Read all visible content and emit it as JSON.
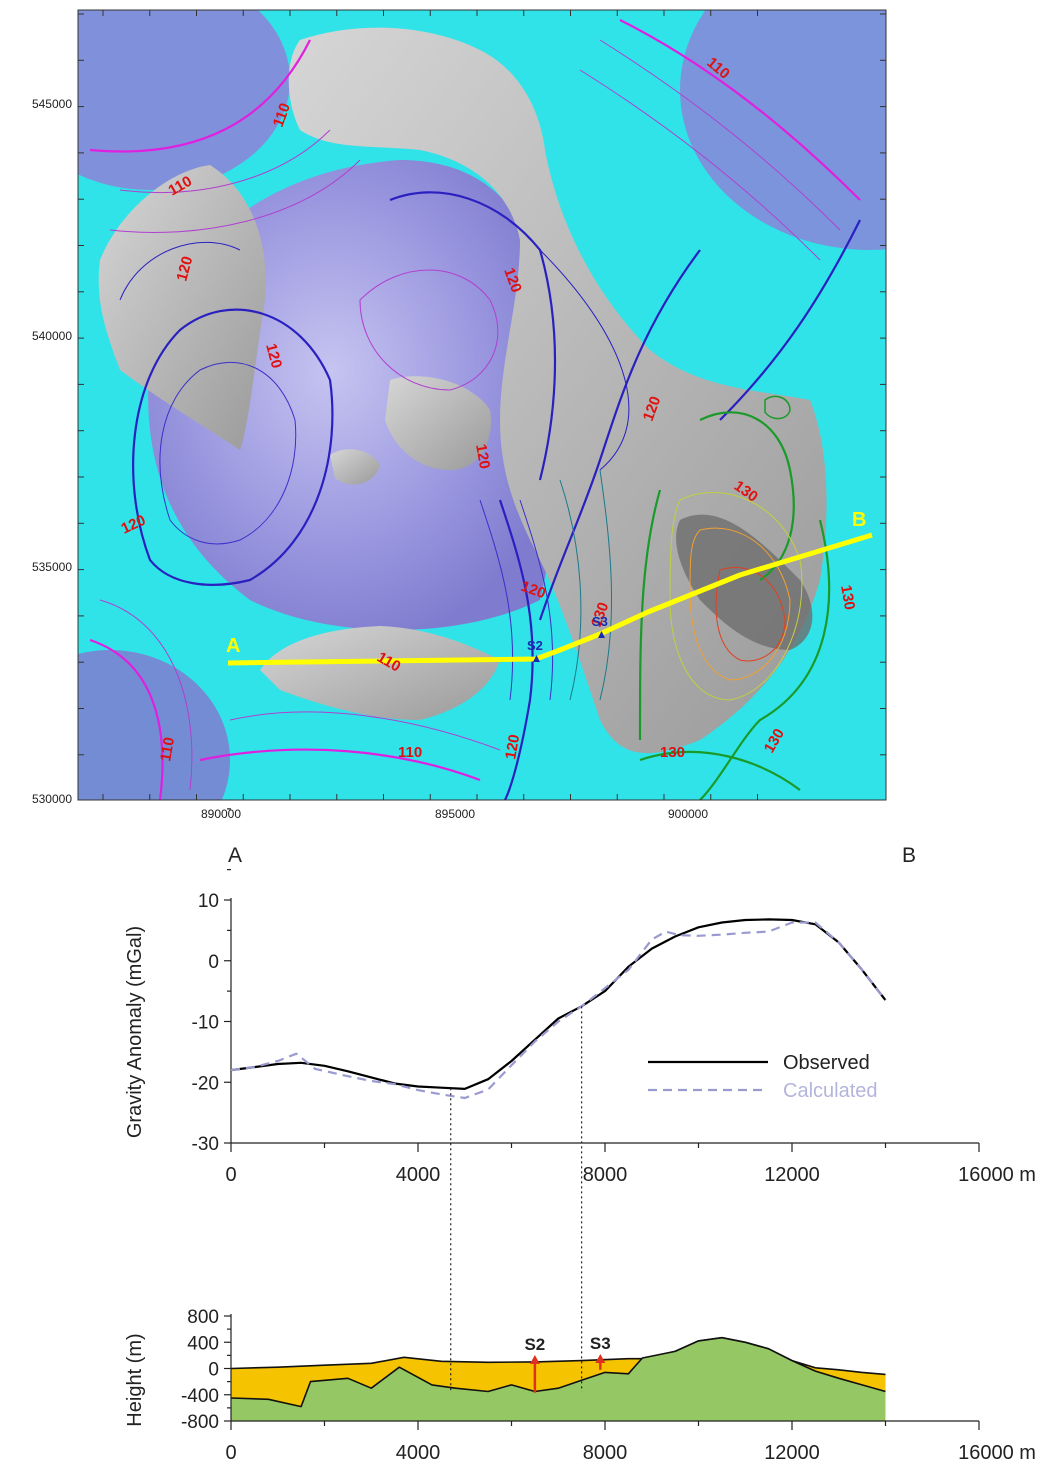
{
  "map": {
    "x_ticks": [
      "890000",
      "895000",
      "900000"
    ],
    "y_ticks": [
      "545000",
      "540000",
      "535000",
      "530000"
    ],
    "contour_labels": [
      "110",
      "110",
      "110",
      "110",
      "110",
      "110",
      "120",
      "120",
      "120",
      "120",
      "120",
      "120",
      "120",
      "130",
      "130",
      "130",
      "130",
      "130"
    ],
    "profile_points": [
      "A",
      "B"
    ],
    "stations": [
      "S2",
      "S3"
    ],
    "colors": {
      "ocean": "#2fe3e8",
      "deep_basin": "#8a86d8",
      "land": "#b9b9b9",
      "profile_line": "#ffff00",
      "label_red": "#e01010",
      "station_blue": "#1a2bb0"
    }
  },
  "profile_ends": {
    "left": "A",
    "right": "B"
  },
  "chart_data": [
    {
      "type": "line",
      "ylabel": "Gravity Anomaly (mGal)",
      "ylim": [
        -30,
        10
      ],
      "xlim": [
        0,
        16000
      ],
      "y_ticks": [
        "10",
        "0",
        "-10",
        "-20",
        "-30"
      ],
      "x_ticks": [
        "0",
        "4000",
        "8000",
        "12000",
        "16000 m"
      ],
      "legend_position": "right",
      "series": [
        {
          "name": "Observed",
          "color": "#000000",
          "dash": "solid",
          "x": [
            0,
            500,
            1000,
            1500,
            2000,
            2500,
            3000,
            3500,
            4000,
            4500,
            5000,
            5500,
            6000,
            6500,
            7000,
            7500,
            8000,
            8500,
            9000,
            9500,
            10000,
            10500,
            11000,
            11500,
            12000,
            12500,
            13000,
            13500,
            14000
          ],
          "y": [
            -18,
            -17.5,
            -17,
            -16.8,
            -17.3,
            -18.2,
            -19.2,
            -20.2,
            -20.7,
            -20.9,
            -21.1,
            -19.5,
            -16.5,
            -13,
            -9.5,
            -7.5,
            -5,
            -1,
            2,
            4,
            5.5,
            6.3,
            6.7,
            6.8,
            6.7,
            6,
            3,
            -1.5,
            -6.5
          ]
        },
        {
          "name": "Calculated",
          "color": "#9a9ad0",
          "dash": "dashed",
          "x": [
            0,
            500,
            1000,
            1400,
            1800,
            2500,
            3000,
            3500,
            4000,
            4500,
            5000,
            5500,
            6000,
            6500,
            7000,
            7500,
            8000,
            8500,
            9000,
            9300,
            9600,
            10000,
            10500,
            11000,
            11500,
            12000,
            12500,
            13000,
            13500,
            14000
          ],
          "y": [
            -18,
            -17.5,
            -16.5,
            -15.3,
            -17.8,
            -19,
            -19.8,
            -20.3,
            -21.3,
            -22,
            -22.6,
            -21.2,
            -17.2,
            -13.3,
            -10,
            -7.5,
            -4.5,
            -1.5,
            3.5,
            4.8,
            4.2,
            4.1,
            4.3,
            4.6,
            4.8,
            6.3,
            6.3,
            3,
            -1.5,
            -6.5
          ]
        }
      ]
    },
    {
      "type": "area",
      "ylabel": "Height (m)",
      "ylim": [
        -800,
        800
      ],
      "xlim": [
        0,
        16000
      ],
      "y_ticks": [
        "800",
        "400",
        "0",
        "-400",
        "-800"
      ],
      "x_ticks": [
        "0",
        "4000",
        "8000",
        "12000",
        "16000 m"
      ],
      "layers": [
        {
          "color": "#f5c300",
          "top": {
            "x": [
              0,
              1000,
              2000,
              3000,
              3700,
              4500,
              5500,
              6500,
              7500,
              8500,
              8800,
              9500,
              10000,
              10500,
              11000,
              11500,
              12000,
              12500,
              13000,
              13500,
              14000
            ],
            "y": [
              0,
              20,
              50,
              80,
              170,
              110,
              95,
              100,
              120,
              150,
              150,
              260,
              420,
              470,
              400,
              300,
              120,
              10,
              -20,
              -60,
              -90
            ]
          }
        },
        {
          "color": "#95c864",
          "top": {
            "x": [
              0,
              800,
              1500,
              1700,
              2500,
              3000,
              3600,
              4300,
              4800,
              5500,
              6000,
              6500,
              7000,
              7500,
              8000,
              8500,
              8800,
              9500,
              10000,
              10500,
              11000,
              11500,
              12000,
              12500,
              13000,
              13500,
              14000
            ],
            "y": [
              -450,
              -470,
              -580,
              -200,
              -150,
              -300,
              20,
              -250,
              -300,
              -350,
              -250,
              -350,
              -300,
              -180,
              -60,
              -80,
              160,
              260,
              420,
              470,
              400,
              300,
              120,
              -40,
              -150,
              -250,
              -350
            ]
          }
        }
      ],
      "stations": [
        {
          "name": "S2",
          "x": 6500,
          "y_bottom": -370,
          "y_top": 160
        },
        {
          "name": "S3",
          "x": 7900,
          "y_bottom": -20,
          "y_top": 175
        }
      ],
      "guides_x": [
        4700,
        7500
      ]
    }
  ]
}
